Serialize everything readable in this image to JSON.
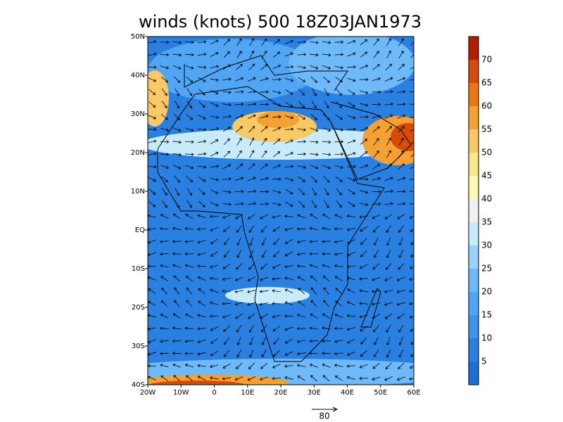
{
  "title": "winds (knots) 500 18Z03JAN1973",
  "map": {
    "lonlim": [
      -20,
      60
    ],
    "latlim": [
      -40,
      50
    ],
    "lon_ticks": [
      {
        "value": -20,
        "label": "20W"
      },
      {
        "value": -10,
        "label": "10W"
      },
      0,
      {
        "value": 10,
        "label": "10E"
      },
      {
        "value": 20,
        "label": "20E"
      },
      {
        "value": 30,
        "label": "30E"
      },
      {
        "value": 40,
        "label": "40E"
      },
      {
        "value": 50,
        "label": "50E"
      },
      {
        "value": 60,
        "label": "60E"
      }
    ],
    "lat_ticks": [
      {
        "value": 50,
        "label": "50N"
      },
      {
        "value": 40,
        "label": "40N"
      },
      {
        "value": 30,
        "label": "30N"
      },
      {
        "value": 20,
        "label": "20N"
      },
      {
        "value": 10,
        "label": "10N"
      },
      {
        "value": 0,
        "label": "EQ"
      },
      {
        "value": -10,
        "label": "10S"
      },
      {
        "value": -20,
        "label": "20S"
      },
      {
        "value": -30,
        "label": "30S"
      },
      {
        "value": -40,
        "label": "40S"
      }
    ]
  },
  "colorbar": {
    "levels": [
      5,
      10,
      15,
      20,
      25,
      30,
      35,
      40,
      45,
      50,
      55,
      60,
      65,
      70
    ],
    "colors": [
      "#1f6ed4",
      "#2a80e0",
      "#3c94ec",
      "#50a5f5",
      "#6eb9fa",
      "#96d2fa",
      "#c8ebfa",
      "#f0f0f0",
      "#fafab4",
      "#fae68c",
      "#fac864",
      "#f5a032",
      "#eb7814",
      "#d74b0a",
      "#b41e00"
    ]
  },
  "reference_vector": {
    "label": "80"
  }
}
